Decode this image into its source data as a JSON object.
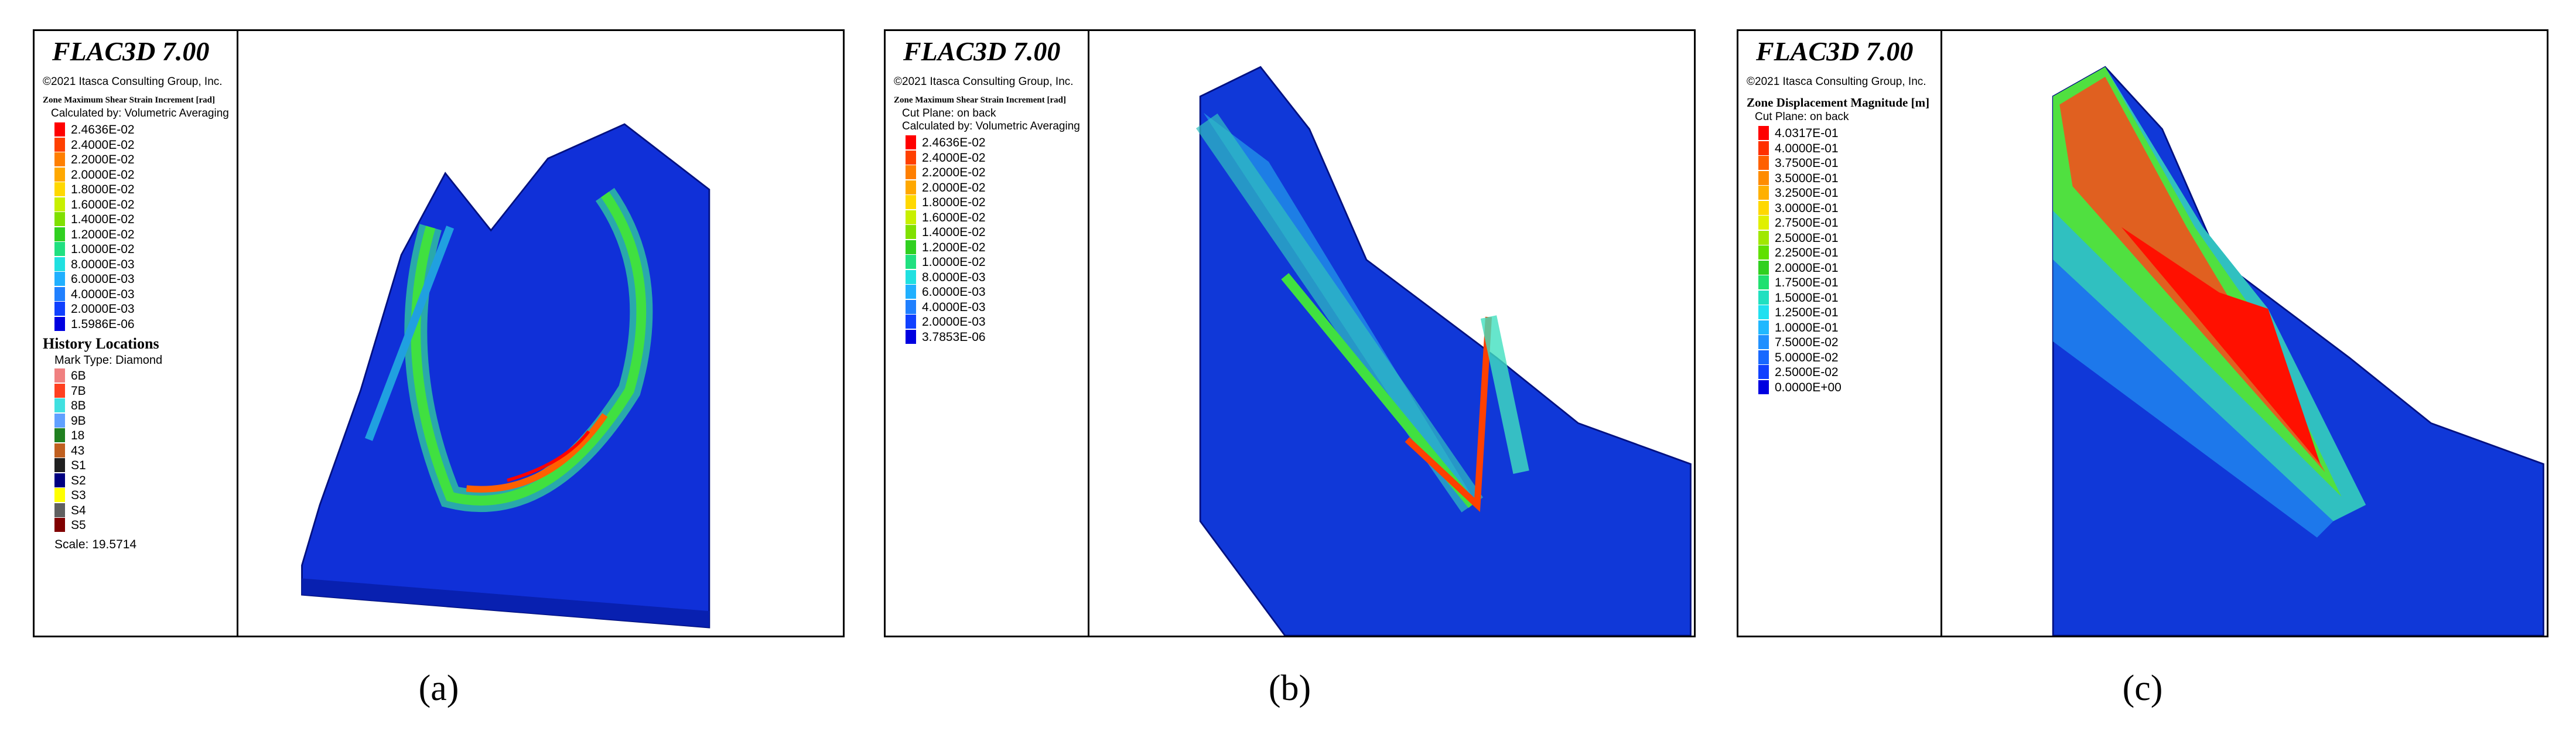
{
  "panels": [
    {
      "title": "FLAC3D 7.00",
      "copyright": "©2021 Itasca Consulting Group, Inc.",
      "legend_title": "Zone Maximum Shear Strain Increment [rad]",
      "legend_notes": [
        "Calculated by: Volumetric Averaging"
      ],
      "legend": [
        {
          "label": "2.4636E-02",
          "color": "#ff0000"
        },
        {
          "label": "2.4000E-02",
          "color": "#ff4000"
        },
        {
          "label": "2.2000E-02",
          "color": "#ff7f00"
        },
        {
          "label": "2.0000E-02",
          "color": "#ffa800"
        },
        {
          "label": "1.8000E-02",
          "color": "#ffd800"
        },
        {
          "label": "1.6000E-02",
          "color": "#c8f000"
        },
        {
          "label": "1.4000E-02",
          "color": "#80e000"
        },
        {
          "label": "1.2000E-02",
          "color": "#30d020"
        },
        {
          "label": "1.0000E-02",
          "color": "#20e080"
        },
        {
          "label": "8.0000E-03",
          "color": "#20e0e0"
        },
        {
          "label": "6.0000E-03",
          "color": "#20b0ff"
        },
        {
          "label": "4.0000E-03",
          "color": "#2080ff"
        },
        {
          "label": "2.0000E-03",
          "color": "#1040ff"
        },
        {
          "label": "1.5986E-06",
          "color": "#0000e0"
        }
      ],
      "history_title": "History Locations",
      "history_notes": [
        "Mark Type: Diamond"
      ],
      "history": [
        {
          "label": "6B",
          "color": "#f08080"
        },
        {
          "label": "7B",
          "color": "#ff4020"
        },
        {
          "label": "8B",
          "color": "#40e0e0"
        },
        {
          "label": "9B",
          "color": "#60a0ff"
        },
        {
          "label": "18",
          "color": "#208020"
        },
        {
          "label": "43",
          "color": "#c06020"
        },
        {
          "label": "S1",
          "color": "#202020"
        },
        {
          "label": "S2",
          "color": "#000080"
        },
        {
          "label": "S3",
          "color": "#ffff00"
        },
        {
          "label": "S4",
          "color": "#606060"
        },
        {
          "label": "S5",
          "color": "#800000"
        }
      ],
      "scale": "Scale: 19.5714",
      "caption": "(a)"
    },
    {
      "title": "FLAC3D 7.00",
      "copyright": "©2021 Itasca Consulting Group, Inc.",
      "legend_title": "Zone Maximum Shear Strain Increment [rad]",
      "legend_notes": [
        "Cut Plane: on back",
        "Calculated by: Volumetric Averaging"
      ],
      "legend": [
        {
          "label": "2.4636E-02",
          "color": "#ff0000"
        },
        {
          "label": "2.4000E-02",
          "color": "#ff4000"
        },
        {
          "label": "2.2000E-02",
          "color": "#ff7f00"
        },
        {
          "label": "2.0000E-02",
          "color": "#ffa800"
        },
        {
          "label": "1.8000E-02",
          "color": "#ffd800"
        },
        {
          "label": "1.6000E-02",
          "color": "#c8f000"
        },
        {
          "label": "1.4000E-02",
          "color": "#80e000"
        },
        {
          "label": "1.2000E-02",
          "color": "#30d020"
        },
        {
          "label": "1.0000E-02",
          "color": "#20e080"
        },
        {
          "label": "8.0000E-03",
          "color": "#20e0e0"
        },
        {
          "label": "6.0000E-03",
          "color": "#20b0ff"
        },
        {
          "label": "4.0000E-03",
          "color": "#2080ff"
        },
        {
          "label": "2.0000E-03",
          "color": "#1040ff"
        },
        {
          "label": "3.7853E-06",
          "color": "#0000e0"
        }
      ],
      "caption": "(b)"
    },
    {
      "title": "FLAC3D 7.00",
      "copyright": "©2021 Itasca Consulting Group, Inc.",
      "legend_title": "Zone Displacement Magnitude [m]",
      "legend_notes": [
        "Cut Plane: on back"
      ],
      "legend": [
        {
          "label": "4.0317E-01",
          "color": "#ff0000"
        },
        {
          "label": "4.0000E-01",
          "color": "#ff3000"
        },
        {
          "label": "3.7500E-01",
          "color": "#ff6000"
        },
        {
          "label": "3.5000E-01",
          "color": "#ff8c00"
        },
        {
          "label": "3.2500E-01",
          "color": "#ffb000"
        },
        {
          "label": "3.0000E-01",
          "color": "#ffd800"
        },
        {
          "label": "2.7500E-01",
          "color": "#e0f000"
        },
        {
          "label": "2.5000E-01",
          "color": "#a0e800"
        },
        {
          "label": "2.2500E-01",
          "color": "#60e000"
        },
        {
          "label": "2.0000E-01",
          "color": "#30d020"
        },
        {
          "label": "1.7500E-01",
          "color": "#20e070"
        },
        {
          "label": "1.5000E-01",
          "color": "#20e0c0"
        },
        {
          "label": "1.2500E-01",
          "color": "#20e0f0"
        },
        {
          "label": "1.0000E-01",
          "color": "#20b8ff"
        },
        {
          "label": "7.5000E-02",
          "color": "#2090ff"
        },
        {
          "label": "5.0000E-02",
          "color": "#1868ff"
        },
        {
          "label": "2.5000E-02",
          "color": "#1040ff"
        },
        {
          "label": "0.0000E+00",
          "color": "#0000e0"
        }
      ],
      "caption": "(c)"
    }
  ]
}
